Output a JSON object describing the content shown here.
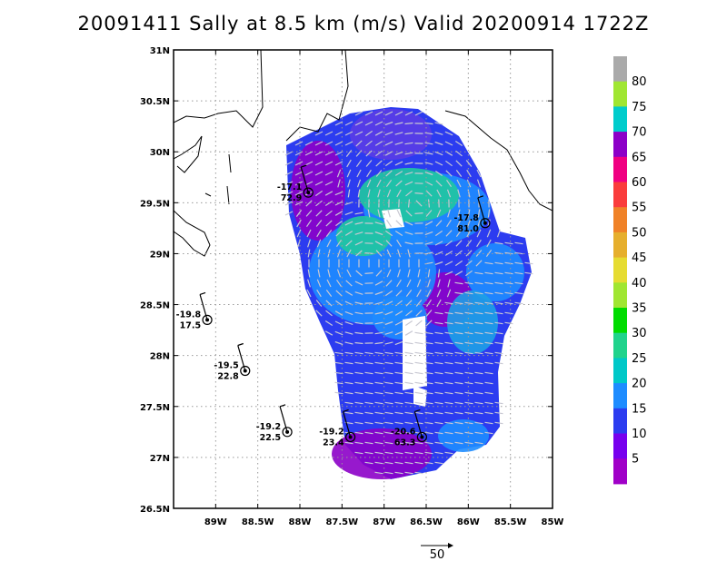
{
  "title": "20091411 Sally at 8.5 km (m/s) Valid 20200914  1722Z",
  "map": {
    "lon_min": -89.5,
    "lon_max": -85,
    "lat_min": 26.5,
    "lat_max": 31,
    "xticks": [
      {
        "lon": -89,
        "label": "89W"
      },
      {
        "lon": -88.5,
        "label": "88.5W"
      },
      {
        "lon": -88,
        "label": "88W"
      },
      {
        "lon": -87.5,
        "label": "87.5W"
      },
      {
        "lon": -87,
        "label": "87W"
      },
      {
        "lon": -86.5,
        "label": "86.5W"
      },
      {
        "lon": -86,
        "label": "86W"
      },
      {
        "lon": -85.5,
        "label": "85.5W"
      },
      {
        "lon": -85,
        "label": "85W"
      }
    ],
    "yticks": [
      {
        "lat": 31,
        "label": "31N"
      },
      {
        "lat": 30.5,
        "label": "30.5N"
      },
      {
        "lat": 30,
        "label": "30N"
      },
      {
        "lat": 29.5,
        "label": "29.5N"
      },
      {
        "lat": 29,
        "label": "29N"
      },
      {
        "lat": 28.5,
        "label": "28.5N"
      },
      {
        "lat": 28,
        "label": "28N"
      },
      {
        "lat": 27.5,
        "label": "27.5N"
      },
      {
        "lat": 27,
        "label": "27N"
      },
      {
        "lat": 26.5,
        "label": "26.5N"
      }
    ],
    "grid": true
  },
  "colorbar": {
    "labels": [
      "5",
      "10",
      "15",
      "20",
      "25",
      "30",
      "35",
      "40",
      "45",
      "50",
      "55",
      "60",
      "65",
      "70",
      "75",
      "80"
    ],
    "colors": [
      "#a000c8",
      "#7700ee",
      "#2c3cf0",
      "#1e8cff",
      "#00c8c8",
      "#20d38c",
      "#00dc00",
      "#a0e632",
      "#e6dc32",
      "#e6af2d",
      "#f08228",
      "#fa3c3c",
      "#f00082",
      "#8c00c8",
      "#00cccc",
      "#a0e632",
      "#aaaaaa"
    ]
  },
  "stations": [
    {
      "lon": -87.9,
      "lat": 29.6,
      "label1": "-17.1",
      "label2": "72.9"
    },
    {
      "lon": -85.8,
      "lat": 29.3,
      "label1": "-17.8",
      "label2": "81.0"
    },
    {
      "lon": -89.1,
      "lat": 28.35,
      "label1": "-19.8",
      "label2": "17.5"
    },
    {
      "lon": -88.65,
      "lat": 27.85,
      "label1": "-19.5",
      "label2": "22.8"
    },
    {
      "lon": -88.15,
      "lat": 27.25,
      "label1": "-19.2",
      "label2": "22.5"
    },
    {
      "lon": -87.4,
      "lat": 27.2,
      "label1": "-19.2",
      "label2": "23.4"
    },
    {
      "lon": -86.55,
      "lat": 27.2,
      "label1": "-20.6",
      "label2": "63.3"
    }
  ],
  "reference_vector": {
    "label": "50"
  }
}
